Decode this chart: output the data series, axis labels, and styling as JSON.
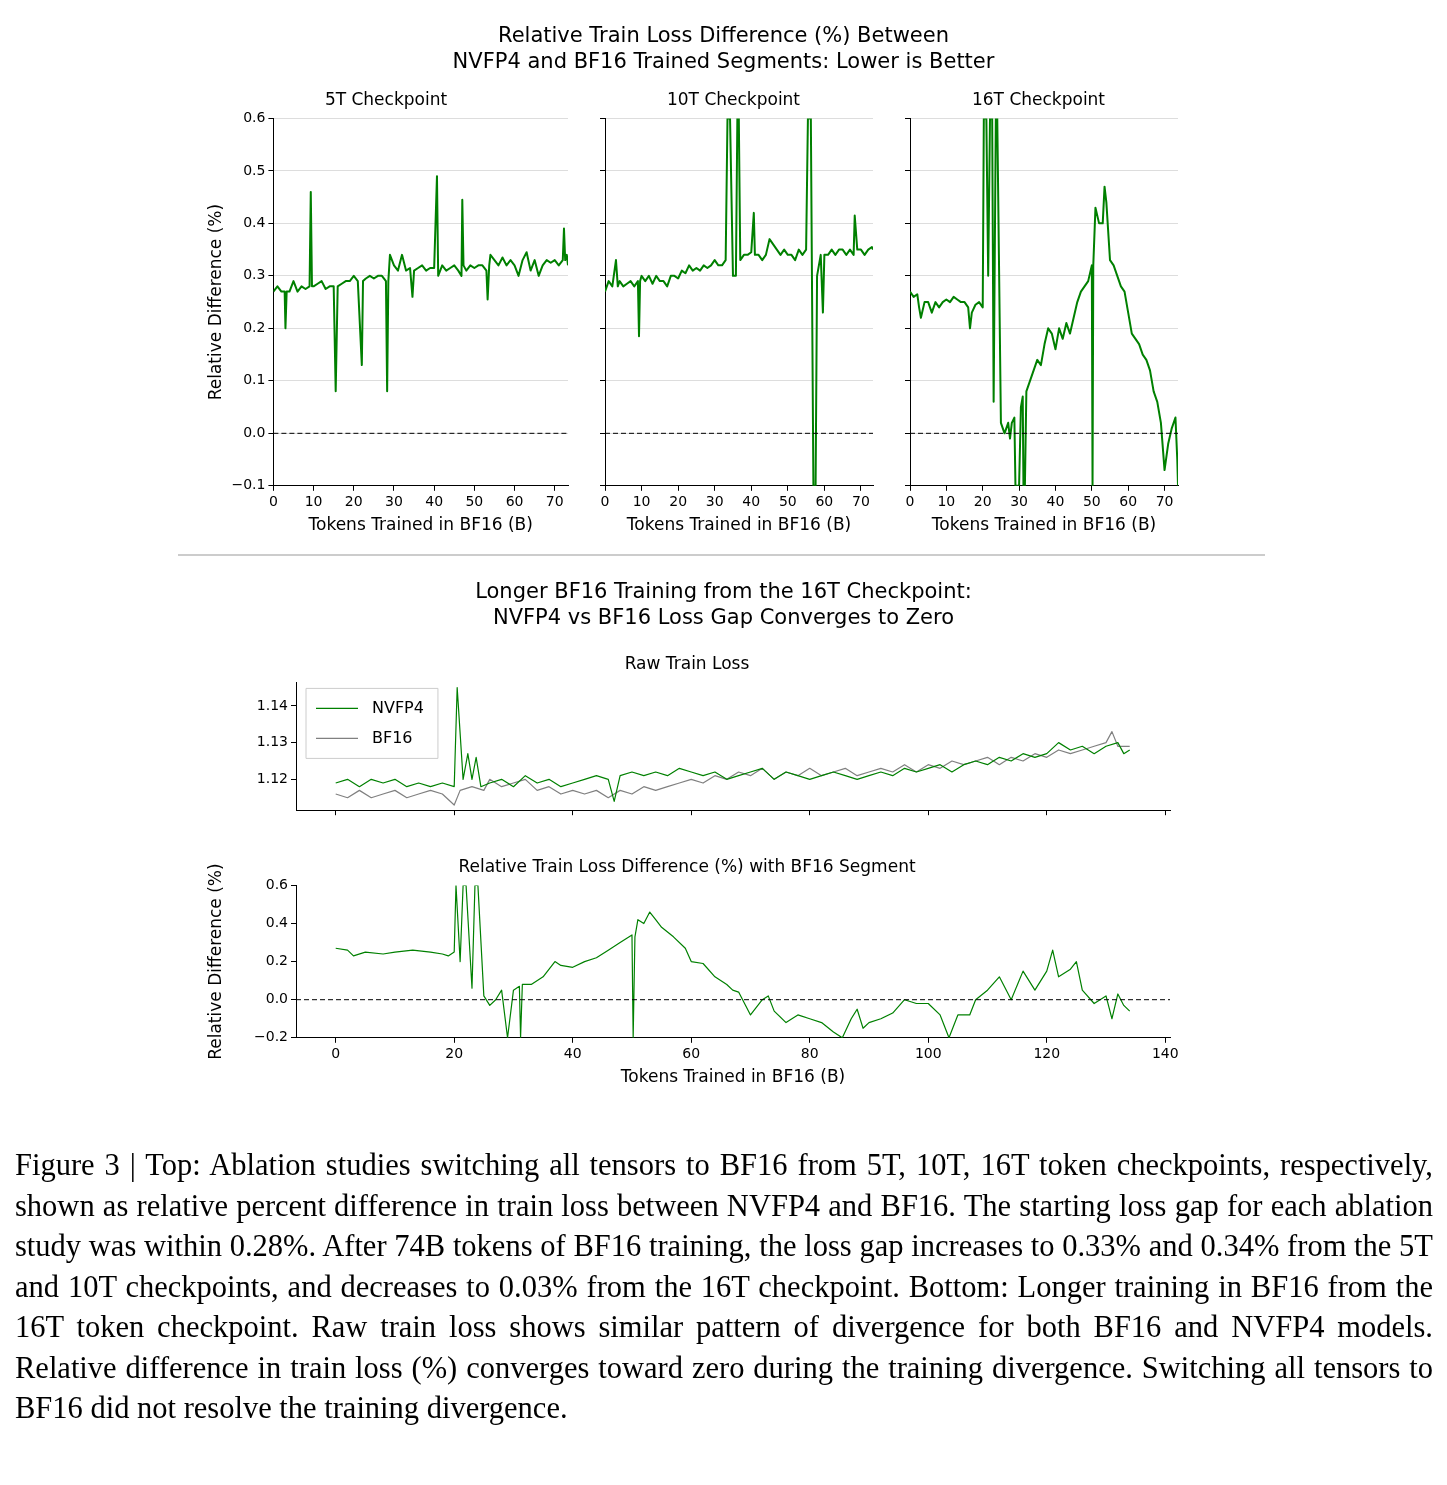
{
  "chart_data": [
    {
      "type": "other",
      "title": "Relative Train Loss Difference (%) Between\nNVFP4 and BF16 Trained Segments: Lower is Better"
    },
    {
      "type": "line",
      "title": "5T Checkpoint",
      "xlabel": "Tokens Trained in BF16 (B)",
      "ylabel": "Relative Difference (%)",
      "xlim": [
        0,
        73.3
      ],
      "xticks": [
        0,
        10,
        20,
        30,
        40,
        50,
        60,
        70
      ],
      "ylim": [
        -0.1,
        0.6
      ],
      "yticks": [
        {
          "value": -0.1,
          "label": "−0.1"
        },
        {
          "value": 0,
          "label": "0.0"
        },
        0.1,
        0.2,
        0.3,
        0.4,
        0.5,
        0.6
      ],
      "grid": "y",
      "ref_lines": [
        {
          "axis": "y",
          "value": 0,
          "line_style": "dashed"
        }
      ],
      "series": [
        {
          "color": "#008000",
          "x": [
            0,
            1,
            2,
            2.8,
            3,
            3.3,
            4,
            5,
            6,
            7,
            8,
            9,
            9.3,
            9.6,
            10,
            11,
            12,
            13,
            14,
            15,
            15.5,
            16,
            17,
            18,
            19,
            20,
            21,
            22,
            22.3,
            23,
            24,
            25,
            26,
            27,
            28,
            28.3,
            28.6,
            29,
            30,
            31,
            32,
            33,
            34,
            34.6,
            35,
            36,
            37,
            38,
            39,
            40,
            40.7,
            41,
            42,
            43,
            44,
            45,
            46,
            46.8,
            47,
            47.3,
            48,
            49,
            50,
            51,
            52,
            53,
            53.3,
            53.7,
            54,
            55,
            56,
            57,
            58,
            59,
            60,
            61,
            62,
            63,
            64,
            65,
            66,
            67,
            68,
            69,
            70,
            71,
            72,
            72.3,
            72.6,
            73,
            73.3
          ],
          "values": [
            0.27,
            0.28,
            0.27,
            0.27,
            0.2,
            0.27,
            0.27,
            0.29,
            0.27,
            0.28,
            0.275,
            0.28,
            0.46,
            0.28,
            0.28,
            0.285,
            0.29,
            0.275,
            0.28,
            0.28,
            0.08,
            0.28,
            0.285,
            0.29,
            0.29,
            0.3,
            0.29,
            0.13,
            0.29,
            0.295,
            0.3,
            0.295,
            0.3,
            0.3,
            0.29,
            0.08,
            0.29,
            0.34,
            0.32,
            0.31,
            0.34,
            0.31,
            0.315,
            0.26,
            0.31,
            0.315,
            0.32,
            0.31,
            0.315,
            0.315,
            0.49,
            0.3,
            0.32,
            0.31,
            0.315,
            0.32,
            0.31,
            0.3,
            0.445,
            0.32,
            0.31,
            0.32,
            0.315,
            0.32,
            0.32,
            0.31,
            0.255,
            0.32,
            0.34,
            0.33,
            0.32,
            0.335,
            0.32,
            0.33,
            0.32,
            0.3,
            0.33,
            0.345,
            0.31,
            0.33,
            0.3,
            0.32,
            0.33,
            0.325,
            0.33,
            0.32,
            0.33,
            0.39,
            0.33,
            0.34,
            0.32
          ]
        }
      ]
    },
    {
      "type": "line",
      "title": "10T Checkpoint",
      "xlabel": "Tokens Trained in BF16 (B)",
      "xlim": [
        0,
        73.3
      ],
      "xticks": [
        0,
        10,
        20,
        30,
        40,
        50,
        60,
        70
      ],
      "ylim": [
        -0.1,
        0.6
      ],
      "yticks": [
        -0.1,
        0,
        0.1,
        0.2,
        0.3,
        0.4,
        0.5,
        0.6
      ],
      "grid": "y",
      "tick_labels": "x",
      "ref_lines": [
        {
          "axis": "y",
          "value": 0,
          "line_style": "dashed"
        }
      ],
      "series": [
        {
          "color": "#008000",
          "x": [
            0,
            1,
            2,
            3,
            3.5,
            4,
            5,
            6,
            7,
            8,
            9,
            9.3,
            9.6,
            10,
            11,
            12,
            13,
            14,
            15,
            16,
            17,
            18,
            19,
            20,
            21,
            22,
            23,
            24,
            25,
            26,
            27,
            28,
            29,
            30,
            31,
            32,
            33,
            33.5,
            34.2,
            35,
            35.8,
            36.2,
            36.6,
            37,
            38,
            39,
            40,
            40.7,
            41,
            42,
            43,
            44,
            45,
            46,
            47,
            48,
            49,
            50,
            51,
            52,
            53,
            54,
            55,
            55.5,
            56.3,
            57,
            57.6,
            58,
            59,
            59.6,
            60,
            61,
            62,
            63,
            64,
            65,
            66,
            67,
            68,
            68.3,
            69,
            70,
            71,
            72,
            73,
            73.3
          ],
          "values": [
            0.27,
            0.29,
            0.28,
            0.33,
            0.28,
            0.29,
            0.28,
            0.285,
            0.29,
            0.28,
            0.29,
            0.185,
            0.29,
            0.3,
            0.29,
            0.3,
            0.285,
            0.3,
            0.29,
            0.29,
            0.28,
            0.3,
            0.3,
            0.295,
            0.31,
            0.305,
            0.32,
            0.31,
            0.315,
            0.31,
            0.32,
            0.315,
            0.32,
            0.33,
            0.32,
            0.32,
            0.33,
            0.6,
            0.6,
            0.3,
            0.3,
            0.6,
            0.6,
            0.33,
            0.34,
            0.34,
            0.345,
            0.42,
            0.34,
            0.34,
            0.33,
            0.34,
            0.37,
            0.36,
            0.35,
            0.34,
            0.35,
            0.34,
            0.34,
            0.33,
            0.35,
            0.34,
            0.35,
            0.6,
            0.6,
            -0.1,
            -0.1,
            0.3,
            0.34,
            0.23,
            0.34,
            0.34,
            0.35,
            0.34,
            0.35,
            0.35,
            0.34,
            0.35,
            0.34,
            0.415,
            0.35,
            0.35,
            0.34,
            0.35,
            0.355,
            0.35
          ]
        }
      ]
    },
    {
      "type": "line",
      "title": "16T Checkpoint",
      "xlabel": "Tokens Trained in BF16 (B)",
      "xlim": [
        0,
        73.7
      ],
      "xticks": [
        0,
        10,
        20,
        30,
        40,
        50,
        60,
        70
      ],
      "ylim": [
        -0.1,
        0.6
      ],
      "yticks": [
        -0.1,
        0,
        0.1,
        0.2,
        0.3,
        0.4,
        0.5,
        0.6
      ],
      "grid": "y",
      "tick_labels": "x",
      "ref_lines": [
        {
          "axis": "y",
          "value": 0,
          "line_style": "dashed"
        }
      ],
      "series": [
        {
          "color": "#008000",
          "x": [
            0,
            1,
            2,
            2.5,
            3,
            4,
            5,
            6,
            7,
            8,
            9,
            10,
            11,
            12,
            13,
            14,
            15,
            16,
            16.5,
            17,
            18,
            19,
            20,
            20.3,
            21,
            21.5,
            22,
            22.6,
            23,
            23.6,
            24,
            25,
            26,
            27,
            27.5,
            28,
            28.7,
            29,
            30,
            30.5,
            31,
            31.2,
            31.6,
            32,
            33,
            34,
            35,
            36,
            37,
            38,
            39,
            40,
            41,
            42,
            43,
            44,
            45,
            46,
            47,
            48,
            49,
            50,
            50.2,
            50.4,
            51,
            52,
            53,
            53.5,
            54,
            55,
            56,
            57,
            58,
            59,
            60,
            61,
            62,
            63,
            64,
            65,
            66,
            67,
            68,
            69,
            70,
            71,
            72,
            73,
            73.5,
            73.7
          ],
          "values": [
            0.27,
            0.26,
            0.265,
            0.24,
            0.22,
            0.25,
            0.25,
            0.23,
            0.25,
            0.24,
            0.25,
            0.255,
            0.25,
            0.26,
            0.255,
            0.25,
            0.25,
            0.24,
            0.2,
            0.23,
            0.245,
            0.25,
            0.24,
            0.6,
            0.6,
            0.3,
            0.6,
            0.6,
            0.06,
            0.6,
            0.6,
            0.02,
            0,
            0.02,
            -0.01,
            0.02,
            0.03,
            -0.1,
            -0.1,
            0.05,
            0.07,
            -0.1,
            -0.1,
            0.08,
            0.1,
            0.12,
            0.14,
            0.13,
            0.17,
            0.2,
            0.19,
            0.16,
            0.2,
            0.18,
            0.21,
            0.19,
            0.22,
            0.25,
            0.27,
            0.28,
            0.29,
            0.32,
            -0.1,
            0.32,
            0.43,
            0.4,
            0.4,
            0.47,
            0.44,
            0.33,
            0.32,
            0.3,
            0.28,
            0.27,
            0.23,
            0.19,
            0.18,
            0.17,
            0.15,
            0.14,
            0.12,
            0.08,
            0.06,
            0.02,
            -0.07,
            -0.02,
            0.01,
            0.03,
            -0.05,
            -0.1
          ]
        }
      ]
    },
    {
      "type": "other",
      "title": "Longer BF16 Training from the 16T Checkpoint:\nNVFP4 vs BF16 Loss Gap Converges to Zero"
    },
    {
      "type": "line",
      "title": "Raw Train Loss",
      "xlim": [
        -6.7,
        140.8
      ],
      "xticks": [
        0,
        20,
        40,
        60,
        80,
        100,
        120,
        140
      ],
      "ylim": [
        1.1116,
        1.1464
      ],
      "yticks": [
        1.12,
        1.13,
        1.14
      ],
      "tick_labels": "y",
      "legend": "top left",
      "series": [
        {
          "name": "NVFP4",
          "color": "#008000",
          "x": [
            0,
            2,
            4,
            6,
            8,
            10,
            12,
            14,
            16,
            18,
            20,
            20.5,
            21.5,
            22.3,
            23,
            23.7,
            24.5,
            26,
            28,
            30,
            32,
            34,
            36,
            38,
            40,
            42,
            44,
            46,
            47,
            48,
            50,
            52,
            54,
            56,
            58,
            60,
            62,
            64,
            66,
            68,
            70,
            72,
            74,
            76,
            78,
            80,
            82,
            84,
            86,
            88,
            90,
            92,
            94,
            96,
            98,
            100,
            102,
            104,
            106,
            108,
            110,
            112,
            114,
            116,
            118,
            120,
            122,
            124,
            126,
            128,
            130,
            132,
            133,
            134
          ],
          "values": [
            1.119,
            1.12,
            1.118,
            1.12,
            1.119,
            1.12,
            1.118,
            1.119,
            1.118,
            1.119,
            1.118,
            1.145,
            1.12,
            1.127,
            1.12,
            1.126,
            1.118,
            1.119,
            1.12,
            1.118,
            1.121,
            1.119,
            1.12,
            1.118,
            1.119,
            1.12,
            1.121,
            1.12,
            1.114,
            1.121,
            1.122,
            1.121,
            1.122,
            1.121,
            1.123,
            1.122,
            1.121,
            1.122,
            1.12,
            1.121,
            1.122,
            1.123,
            1.12,
            1.122,
            1.121,
            1.12,
            1.121,
            1.122,
            1.121,
            1.12,
            1.121,
            1.122,
            1.121,
            1.123,
            1.122,
            1.123,
            1.124,
            1.122,
            1.124,
            1.125,
            1.124,
            1.126,
            1.125,
            1.127,
            1.126,
            1.127,
            1.13,
            1.128,
            1.129,
            1.127,
            1.129,
            1.13,
            1.127,
            1.128
          ]
        },
        {
          "name": "BF16",
          "color": "#808080",
          "x": [
            0,
            2,
            4,
            6,
            8,
            10,
            12,
            14,
            16,
            18,
            20,
            21,
            23,
            25,
            26,
            28,
            30,
            32,
            34,
            36,
            38,
            40,
            42,
            44,
            46,
            48,
            50,
            52,
            54,
            56,
            58,
            60,
            62,
            64,
            66,
            68,
            70,
            72,
            74,
            76,
            78,
            80,
            82,
            84,
            86,
            88,
            90,
            92,
            94,
            96,
            98,
            100,
            102,
            104,
            106,
            108,
            110,
            112,
            114,
            116,
            118,
            120,
            122,
            124,
            126,
            128,
            130,
            131,
            132,
            134
          ],
          "values": [
            1.116,
            1.115,
            1.117,
            1.115,
            1.116,
            1.117,
            1.115,
            1.116,
            1.117,
            1.116,
            1.113,
            1.117,
            1.118,
            1.117,
            1.12,
            1.118,
            1.119,
            1.12,
            1.117,
            1.118,
            1.116,
            1.117,
            1.116,
            1.117,
            1.115,
            1.117,
            1.116,
            1.118,
            1.117,
            1.118,
            1.119,
            1.12,
            1.119,
            1.121,
            1.12,
            1.122,
            1.121,
            1.123,
            1.12,
            1.122,
            1.121,
            1.123,
            1.121,
            1.122,
            1.123,
            1.121,
            1.122,
            1.123,
            1.122,
            1.124,
            1.122,
            1.124,
            1.123,
            1.125,
            1.124,
            1.125,
            1.126,
            1.124,
            1.126,
            1.125,
            1.127,
            1.126,
            1.128,
            1.127,
            1.128,
            1.129,
            1.13,
            1.133,
            1.129,
            1.129
          ]
        }
      ]
    },
    {
      "type": "line",
      "title": "Relative Train Loss Difference (%) with BF16 Segment",
      "xlabel": "Tokens Trained in BF16 (B)",
      "ylabel": "Relative Difference (%)",
      "xlim": [
        -6.7,
        140.8
      ],
      "xticks": [
        0,
        20,
        40,
        60,
        80,
        100,
        120,
        140
      ],
      "ylim": [
        -0.2,
        0.6
      ],
      "yticks": [
        {
          "value": -0.2,
          "label": "−0.2"
        },
        {
          "value": 0,
          "label": "0.0"
        },
        0.2,
        0.4,
        0.6
      ],
      "ref_lines": [
        {
          "axis": "y",
          "value": 0,
          "line_style": "dashed"
        }
      ],
      "series": [
        {
          "color": "#008000",
          "x": [
            0,
            2,
            3,
            5,
            8,
            10,
            13,
            16,
            18,
            19,
            20,
            20.3,
            21,
            21.5,
            22,
            23,
            23.5,
            24,
            25,
            26,
            27,
            28,
            29,
            30,
            31,
            31.2,
            31.5,
            33,
            35,
            37,
            38,
            40,
            42,
            44,
            46,
            48,
            50,
            50.2,
            50.5,
            51,
            52,
            53,
            54,
            55,
            57,
            59,
            60,
            62,
            64,
            66,
            67,
            68,
            69,
            70,
            72,
            73,
            74,
            76,
            78,
            80,
            82,
            84,
            85.5,
            87,
            88,
            89,
            90,
            92,
            94,
            96,
            98,
            100,
            102,
            103.5,
            105,
            107,
            108,
            110,
            112,
            114,
            116,
            118,
            120,
            121,
            122,
            124,
            125,
            126,
            128,
            130,
            131,
            132,
            133,
            134
          ],
          "values": [
            0.27,
            0.26,
            0.23,
            0.25,
            0.24,
            0.25,
            0.26,
            0.25,
            0.24,
            0.23,
            0.25,
            0.6,
            0.2,
            0.6,
            0.6,
            0.06,
            0.6,
            0.6,
            0.02,
            -0.03,
            0,
            0.05,
            -0.2,
            0.05,
            0.07,
            -0.2,
            0.08,
            0.08,
            0.12,
            0.2,
            0.18,
            0.17,
            0.2,
            0.22,
            0.26,
            0.3,
            0.34,
            -0.2,
            0.33,
            0.42,
            0.4,
            0.46,
            0.42,
            0.38,
            0.33,
            0.27,
            0.2,
            0.19,
            0.12,
            0.08,
            0.05,
            0.04,
            -0.02,
            -0.08,
            0,
            0.02,
            -0.06,
            -0.12,
            -0.08,
            -0.1,
            -0.12,
            -0.17,
            -0.2,
            -0.1,
            -0.05,
            -0.15,
            -0.12,
            -0.1,
            -0.07,
            0,
            -0.02,
            -0.02,
            -0.08,
            -0.2,
            -0.08,
            -0.08,
            0,
            0.05,
            0.12,
            0,
            0.15,
            0.05,
            0.15,
            0.26,
            0.12,
            0.16,
            0.2,
            0.05,
            -0.02,
            0.02,
            -0.1,
            0.03,
            -0.03,
            -0.06
          ]
        }
      ]
    },
    {
      "type": "other",
      "annotations": [
        "Figure 3 | Top: Ablation studies switching all tensors to BF16 from 5T, 10T, 16T token checkpoints, respectively, shown as relative percent difference in train loss between NVFP4 and BF16. The starting loss gap for each ablation study was within 0.28%. After 74B tokens of BF16 training, the loss gap increases to 0.33% and 0.34% from the 5T and 10T checkpoints, and decreases to 0.03% from the 16T checkpoint. Bottom: Longer training in BF16 from the 16T token checkpoint. Raw train loss shows similar pattern of divergence for both BF16 and NVFP4 models. Relative difference in train loss (%) converges toward zero during the training divergence. Switching all tensors to BF16 did not resolve the training divergence."
      ]
    }
  ]
}
